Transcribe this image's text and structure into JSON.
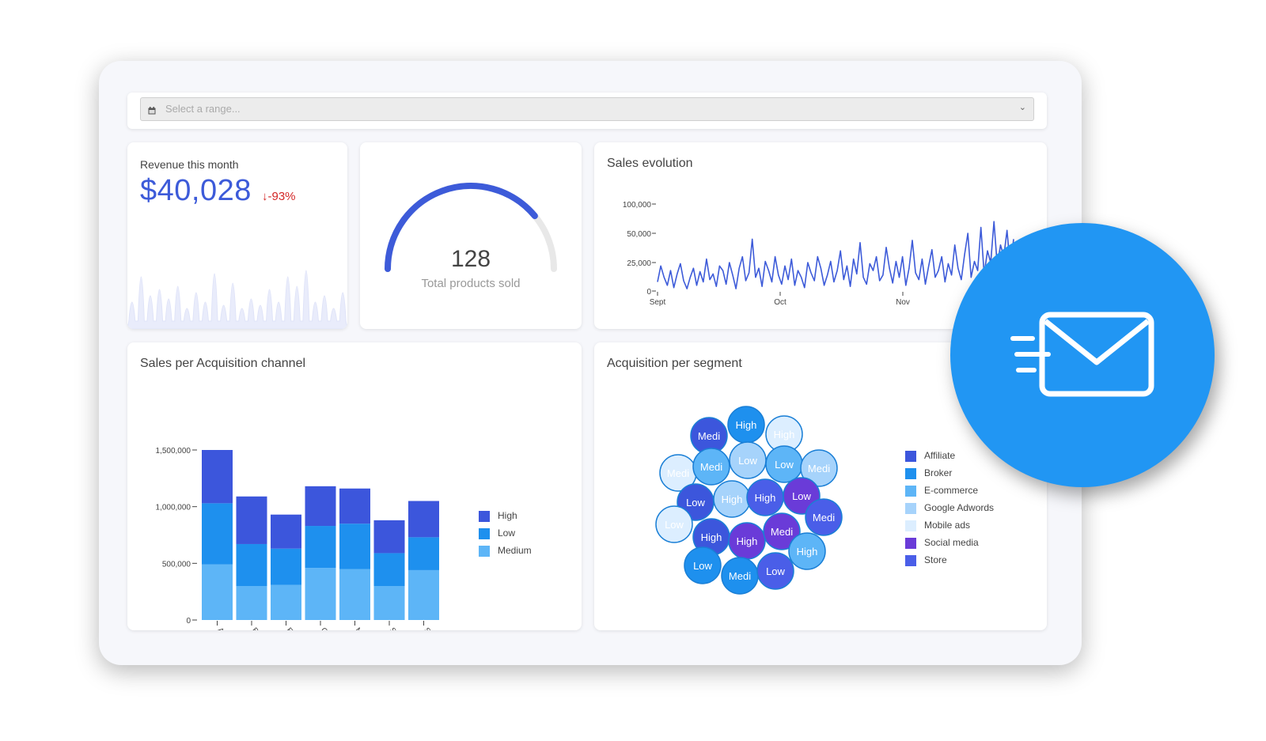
{
  "range_picker": {
    "placeholder": "Select a range...",
    "calendar_icon": "calendar-icon",
    "chevron_icon": "chevron-down-icon"
  },
  "revenue": {
    "label": "Revenue this month",
    "value": "$40,028",
    "delta": "-93%",
    "delta_icon": "arrow-down-icon",
    "delta_color": "#d32626",
    "value_color": "#3d5bd9"
  },
  "gauge": {
    "value": "128",
    "label": "Total products sold",
    "fill_fraction": 0.78,
    "color": "#3d5bd9"
  },
  "sales_evolution": {
    "title": "Sales evolution"
  },
  "sales_channel": {
    "title": "Sales per Acquisition channel"
  },
  "segment": {
    "title": "Acquisition per segment"
  },
  "mail_icon": "send-mail-icon",
  "chart_data": [
    {
      "type": "line",
      "title": "Sales evolution",
      "y_ticks": [
        "100,000",
        "50,000",
        "25,000",
        "0"
      ],
      "x_ticks": [
        "Sept",
        "Oct",
        "Nov"
      ],
      "ylim": [
        0,
        100000
      ],
      "color": "#3d5bd9",
      "values": [
        8000,
        22000,
        12000,
        5000,
        18000,
        3000,
        15000,
        24000,
        9000,
        2000,
        12000,
        20000,
        5000,
        17000,
        8000,
        28000,
        10000,
        15000,
        4000,
        22000,
        18000,
        6000,
        25000,
        14000,
        2000,
        20000,
        30000,
        9000,
        16000,
        45000,
        12000,
        20000,
        4000,
        26000,
        18000,
        8000,
        30000,
        14000,
        6000,
        22000,
        10000,
        28000,
        5000,
        18000,
        12000,
        3000,
        25000,
        16000,
        9000,
        30000,
        20000,
        5000,
        14000,
        26000,
        8000,
        18000,
        35000,
        10000,
        22000,
        4000,
        28000,
        15000,
        42000,
        12000,
        6000,
        24000,
        18000,
        30000,
        9000,
        14000,
        38000,
        20000,
        7000,
        26000,
        12000,
        30000,
        5000,
        20000,
        44000,
        16000,
        10000,
        28000,
        6000,
        22000,
        36000,
        12000,
        18000,
        30000,
        8000,
        24000,
        14000,
        40000,
        20000,
        10000,
        32000,
        50000,
        12000,
        26000,
        18000,
        60000,
        15000,
        35000,
        25000,
        70000,
        22000,
        40000,
        30000,
        55000,
        20000,
        45000
      ]
    },
    {
      "type": "bar",
      "title": "Sales per Acquisition channel",
      "stacked": true,
      "categories": [
        "Affiliate",
        "Broker",
        "E-commerce",
        "Google Adw...",
        "Mobile ads",
        "Social media",
        "Store"
      ],
      "y_ticks": [
        "1,500,000",
        "1,000,000",
        "500,000",
        "0"
      ],
      "ylim": [
        0,
        1500000
      ],
      "series": [
        {
          "name": "Medium",
          "color": "#5db5f7",
          "values": [
            490000,
            300000,
            310000,
            460000,
            450000,
            300000,
            440000
          ]
        },
        {
          "name": "Low",
          "color": "#1e90ee",
          "values": [
            540000,
            370000,
            320000,
            370000,
            400000,
            290000,
            290000
          ]
        },
        {
          "name": "High",
          "color": "#3c56dc",
          "values": [
            470000,
            420000,
            300000,
            350000,
            310000,
            290000,
            320000
          ]
        }
      ],
      "legend": [
        "High",
        "Low",
        "Medium"
      ],
      "legend_position": "right"
    },
    {
      "type": "bubble",
      "title": "Acquisition per segment",
      "legend": [
        {
          "label": "Affiliate",
          "color": "#3c56dc"
        },
        {
          "label": "Broker",
          "color": "#1e90ee"
        },
        {
          "label": "E-commerce",
          "color": "#5db5f7"
        },
        {
          "label": "Google Adwords",
          "color": "#a6d3fb"
        },
        {
          "label": "Mobile ads",
          "color": "#dceeff"
        },
        {
          "label": "Social media",
          "color": "#6a3bd8"
        },
        {
          "label": "Store",
          "color": "#4a5ee8"
        }
      ],
      "legend_position": "right",
      "bubbles": [
        {
          "label": "Medi",
          "channel": "Affiliate"
        },
        {
          "label": "High",
          "channel": "Broker"
        },
        {
          "label": "High",
          "channel": "Mobile ads"
        },
        {
          "label": "Medi",
          "channel": "Mobile ads"
        },
        {
          "label": "Medi",
          "channel": "E-commerce"
        },
        {
          "label": "Low",
          "channel": "Google Adwords"
        },
        {
          "label": "Low",
          "channel": "E-commerce"
        },
        {
          "label": "Medi",
          "channel": "Google Adwords"
        },
        {
          "label": "Low",
          "channel": "Affiliate"
        },
        {
          "label": "High",
          "channel": "Google Adwords"
        },
        {
          "label": "High",
          "channel": "Store"
        },
        {
          "label": "Low",
          "channel": "Social media"
        },
        {
          "label": "Medi",
          "channel": "Store"
        },
        {
          "label": "Low",
          "channel": "Mobile ads"
        },
        {
          "label": "High",
          "channel": "Affiliate"
        },
        {
          "label": "High",
          "channel": "Social media"
        },
        {
          "label": "Medi",
          "channel": "Social media"
        },
        {
          "label": "High",
          "channel": "E-commerce"
        },
        {
          "label": "Low",
          "channel": "Broker"
        },
        {
          "label": "Medi",
          "channel": "Broker"
        },
        {
          "label": "Low",
          "channel": "Store"
        }
      ]
    }
  ]
}
